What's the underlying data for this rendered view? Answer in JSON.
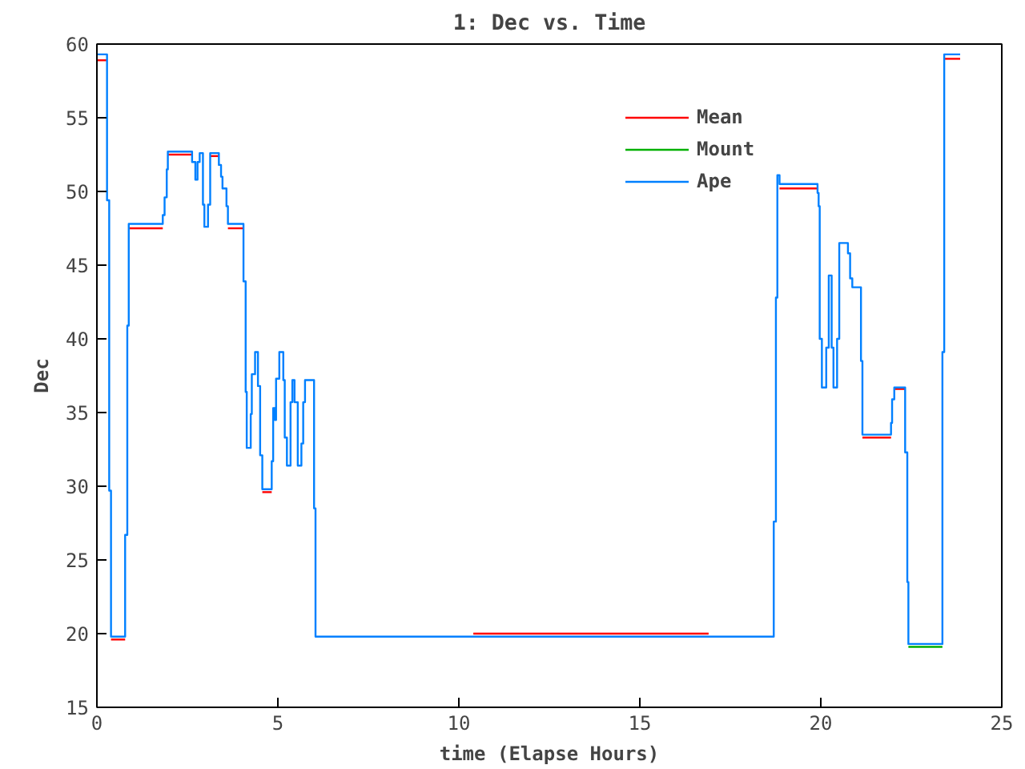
{
  "chart_data": {
    "type": "step",
    "title": "1: Dec vs. Time",
    "xlabel": "time (Elapse Hours)",
    "ylabel": "Dec",
    "xlim": [
      0,
      25
    ],
    "xticks": [
      0,
      5,
      10,
      15,
      20,
      25
    ],
    "ylim": [
      15,
      60
    ],
    "yticks": [
      15,
      20,
      25,
      30,
      35,
      40,
      45,
      50,
      55,
      60
    ],
    "grid": false,
    "legend": "top right",
    "series": [
      {
        "name": "Mean",
        "color": "#ff0000",
        "x": [
          0,
          0.28,
          0.3,
          0.39,
          0.78,
          0.8,
          0.88,
          1.82,
          1.85,
          1.96,
          2.63,
          2.65,
          3.13,
          3.37,
          3.4,
          3.62,
          4.05,
          4.08,
          4.57,
          4.83,
          4.85,
          10.4,
          16.9,
          17.0,
          18.86,
          19.91,
          19.93,
          21.15,
          21.94,
          21.96,
          22.03,
          22.33,
          22.35,
          23.41,
          23.85
        ],
        "values": [
          58.9,
          58.9,
          null,
          19.6,
          19.6,
          null,
          47.5,
          47.5,
          null,
          52.5,
          52.5,
          null,
          52.4,
          52.4,
          null,
          47.5,
          47.5,
          null,
          29.6,
          29.6,
          null,
          20.0,
          20.0,
          null,
          50.2,
          50.2,
          null,
          33.3,
          33.3,
          null,
          36.6,
          36.6,
          null,
          59.0,
          59.0
        ]
      },
      {
        "name": "Mount",
        "color": "#00b000",
        "x": [
          22.42,
          23.36
        ],
        "values": [
          19.1,
          19.1
        ]
      },
      {
        "name": "Ape",
        "color": "#0080ff",
        "x": [
          0,
          0.28,
          0.34,
          0.39,
          0.78,
          0.84,
          0.88,
          1.82,
          1.87,
          1.93,
          1.96,
          2.63,
          2.72,
          2.78,
          2.84,
          2.93,
          2.97,
          3.07,
          3.13,
          3.37,
          3.43,
          3.47,
          3.58,
          3.62,
          4.05,
          4.11,
          4.14,
          4.25,
          4.28,
          4.37,
          4.45,
          4.51,
          4.57,
          4.83,
          4.87,
          4.92,
          4.95,
          5.04,
          5.15,
          5.19,
          5.25,
          5.35,
          5.4,
          5.46,
          5.55,
          5.65,
          5.7,
          5.75,
          6.0,
          6.04,
          18.7,
          18.76,
          18.8,
          18.86,
          19.91,
          19.94,
          19.97,
          20.03,
          20.15,
          20.22,
          20.3,
          20.35,
          20.45,
          20.51,
          20.75,
          20.81,
          20.87,
          21.11,
          21.15,
          21.94,
          21.97,
          22.03,
          22.33,
          22.39,
          22.42,
          23.36,
          23.41,
          23.85
        ],
        "values": [
          59.3,
          49.4,
          29.7,
          19.8,
          26.7,
          40.9,
          47.8,
          48.4,
          49.6,
          51.5,
          52.7,
          52.0,
          50.8,
          52.0,
          52.6,
          49.1,
          47.6,
          49.1,
          52.6,
          51.8,
          51.0,
          50.2,
          49.0,
          47.8,
          43.9,
          36.4,
          32.6,
          34.9,
          37.6,
          39.1,
          36.8,
          32.1,
          29.8,
          31.7,
          35.3,
          34.5,
          37.3,
          39.1,
          37.2,
          33.3,
          31.4,
          35.7,
          37.2,
          35.7,
          31.4,
          32.9,
          35.7,
          37.2,
          28.5,
          19.8,
          27.6,
          42.8,
          51.1,
          50.5,
          49.9,
          49.0,
          40.0,
          36.7,
          39.4,
          44.3,
          39.4,
          36.7,
          40.0,
          46.5,
          45.8,
          44.1,
          43.5,
          38.5,
          33.5,
          34.3,
          35.9,
          36.7,
          32.3,
          23.5,
          19.3,
          39.1,
          59.3,
          59.3
        ]
      }
    ]
  }
}
